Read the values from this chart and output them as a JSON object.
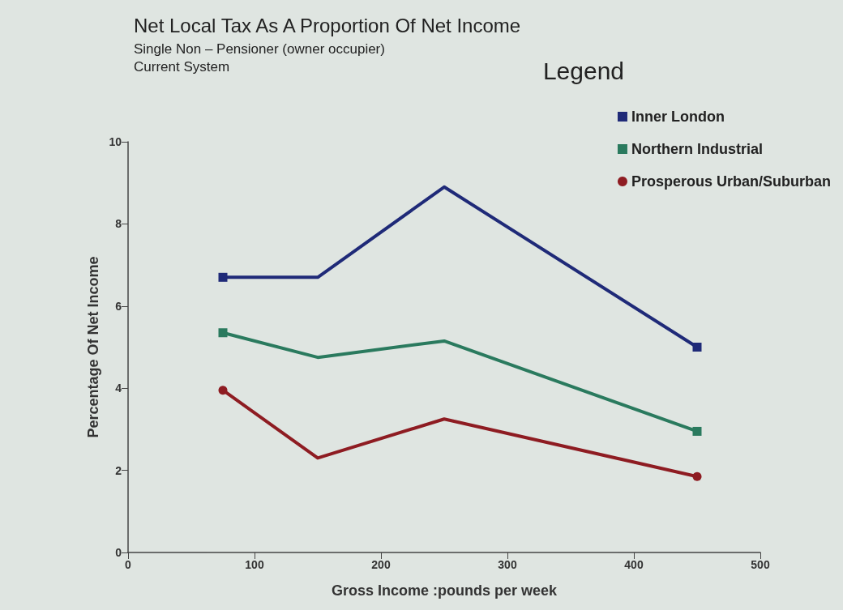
{
  "chart_data": {
    "type": "line",
    "title": "Net Local Tax As A Proportion Of Net Income",
    "subtitle": "Single Non – Pensioner (owner occupier)\nCurrent System",
    "xlabel": "Gross Income :pounds per week",
    "ylabel": "Percentage Of Net Income",
    "legend_title": "Legend",
    "x": [
      75,
      150,
      250,
      450
    ],
    "series": [
      {
        "name": "Inner London",
        "color": "#1f2a78",
        "marker": "square",
        "values": [
          6.7,
          6.7,
          8.9,
          5.0
        ]
      },
      {
        "name": "Northern Industrial",
        "color": "#2a7a5e",
        "marker": "square",
        "values": [
          5.35,
          4.75,
          5.15,
          2.95
        ]
      },
      {
        "name": "Prosperous Urban/Suburban",
        "color": "#8e1c22",
        "marker": "circle",
        "values": [
          3.95,
          2.3,
          3.25,
          1.85
        ]
      }
    ],
    "xlim": [
      0,
      500
    ],
    "xticks": [
      0,
      100,
      200,
      300,
      400,
      500
    ],
    "ylim": [
      0,
      10
    ],
    "yticks": [
      0,
      2,
      4,
      6,
      8,
      10
    ],
    "grid": false,
    "legend": "top right"
  }
}
